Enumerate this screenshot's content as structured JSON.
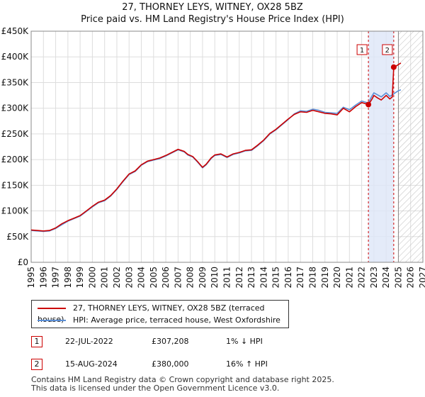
{
  "chart_data": {
    "type": "line",
    "title": "27, THORNEY LEYS, WITNEY, OX28 5BZ",
    "subtitle": "Price paid vs. HM Land Registry's House Price Index (HPI)",
    "xlabel": "",
    "ylabel": "",
    "xlim": [
      1995,
      2027
    ],
    "ylim": [
      0,
      450000
    ],
    "x_ticks": [
      "1995",
      "1996",
      "1997",
      "1998",
      "1999",
      "2000",
      "2001",
      "2002",
      "2003",
      "2004",
      "2005",
      "2006",
      "2007",
      "2008",
      "2009",
      "2010",
      "2011",
      "2012",
      "2013",
      "2014",
      "2015",
      "2016",
      "2017",
      "2018",
      "2019",
      "2020",
      "2021",
      "2022",
      "2023",
      "2024",
      "2025",
      "2026",
      "2027"
    ],
    "y_ticks": [
      {
        "value": 0,
        "label": "£0"
      },
      {
        "value": 50000,
        "label": "£50K"
      },
      {
        "value": 100000,
        "label": "£100K"
      },
      {
        "value": 150000,
        "label": "£150K"
      },
      {
        "value": 200000,
        "label": "£200K"
      },
      {
        "value": 250000,
        "label": "£250K"
      },
      {
        "value": 300000,
        "label": "£300K"
      },
      {
        "value": 350000,
        "label": "£350K"
      },
      {
        "value": 400000,
        "label": "£400K"
      },
      {
        "value": 450000,
        "label": "£450K"
      }
    ],
    "grid": true,
    "shaded_period": {
      "start": 2022.55,
      "end": 2024.62
    },
    "future_hatch_start": 2025.0,
    "series": [
      {
        "name": "27, THORNEY LEYS, WITNEY, OX28 5BZ (terraced house)",
        "color": "#cc0000",
        "x": [
          1995.0,
          1995.5,
          1996.0,
          1996.5,
          1997.0,
          1997.5,
          1998.0,
          1998.5,
          1999.0,
          1999.5,
          2000.0,
          2000.5,
          2001.0,
          2001.5,
          2002.0,
          2002.5,
          2003.0,
          2003.5,
          2004.0,
          2004.5,
          2005.0,
          2005.5,
          2006.0,
          2006.5,
          2007.0,
          2007.5,
          2007.8,
          2008.2,
          2008.6,
          2009.0,
          2009.3,
          2009.7,
          2010.0,
          2010.5,
          2011.0,
          2011.5,
          2012.0,
          2012.5,
          2013.0,
          2013.5,
          2014.0,
          2014.5,
          2015.0,
          2015.5,
          2016.0,
          2016.5,
          2017.0,
          2017.5,
          2018.0,
          2018.5,
          2019.0,
          2019.5,
          2020.0,
          2020.5,
          2021.0,
          2021.5,
          2022.0,
          2022.55,
          2022.8,
          2023.0,
          2023.3,
          2023.6,
          2024.0,
          2024.3,
          2024.5,
          2024.62,
          2024.8,
          2025.0,
          2025.2
        ],
        "values": [
          63000,
          62000,
          61000,
          62000,
          67000,
          75000,
          81000,
          86000,
          91000,
          100000,
          109000,
          117000,
          121000,
          130000,
          143000,
          158000,
          172000,
          178000,
          190000,
          197000,
          200000,
          203000,
          208000,
          214000,
          220000,
          216000,
          210000,
          206000,
          196000,
          185000,
          191000,
          203000,
          209000,
          211000,
          205000,
          211000,
          214000,
          218000,
          219000,
          228000,
          238000,
          251000,
          259000,
          269000,
          279000,
          288000,
          293000,
          292000,
          296000,
          293000,
          290000,
          289000,
          287000,
          300000,
          293000,
          303000,
          311000,
          307208,
          316000,
          325000,
          320000,
          316000,
          325000,
          318000,
          322000,
          380000,
          382000,
          385000,
          388000
        ]
      },
      {
        "name": "HPI: Average price, terraced house, West Oxfordshire",
        "color": "#5b8fd6",
        "x": [
          1995.0,
          1995.5,
          1996.0,
          1996.5,
          1997.0,
          1997.5,
          1998.0,
          1998.5,
          1999.0,
          1999.5,
          2000.0,
          2000.5,
          2001.0,
          2001.5,
          2002.0,
          2002.5,
          2003.0,
          2003.5,
          2004.0,
          2004.5,
          2005.0,
          2005.5,
          2006.0,
          2006.5,
          2007.0,
          2007.5,
          2007.8,
          2008.2,
          2008.6,
          2009.0,
          2009.3,
          2009.7,
          2010.0,
          2010.5,
          2011.0,
          2011.5,
          2012.0,
          2012.5,
          2013.0,
          2013.5,
          2014.0,
          2014.5,
          2015.0,
          2015.5,
          2016.0,
          2016.5,
          2017.0,
          2017.5,
          2018.0,
          2018.5,
          2019.0,
          2019.5,
          2020.0,
          2020.5,
          2021.0,
          2021.5,
          2022.0,
          2022.55,
          2022.8,
          2023.0,
          2023.3,
          2023.6,
          2024.0,
          2024.3,
          2024.5,
          2024.62,
          2024.8,
          2025.0,
          2025.2
        ],
        "values": [
          62000,
          61000,
          60000,
          61000,
          66000,
          73000,
          80000,
          85000,
          90000,
          99000,
          108000,
          116000,
          120000,
          129000,
          142000,
          157000,
          171000,
          177000,
          189000,
          196000,
          199000,
          202000,
          207000,
          213000,
          219000,
          215000,
          209000,
          205000,
          195000,
          184000,
          190000,
          202000,
          208000,
          210000,
          204000,
          210000,
          213000,
          217000,
          218000,
          227000,
          237000,
          250000,
          258000,
          268000,
          278000,
          289000,
          295000,
          294000,
          298000,
          296000,
          292000,
          291000,
          290000,
          302000,
          297000,
          306000,
          314000,
          310000,
          322000,
          330000,
          326000,
          322000,
          330000,
          323000,
          326000,
          328000,
          331000,
          334000,
          336000
        ]
      }
    ],
    "annotations": [
      {
        "label": "1",
        "x": 2022.55,
        "value": 307208
      },
      {
        "label": "2",
        "x": 2024.62,
        "value": 380000
      }
    ]
  },
  "legend": {
    "series1_label": "27, THORNEY LEYS, WITNEY, OX28 5BZ (terraced house)",
    "series2_label": "HPI: Average price, terraced house, West Oxfordshire"
  },
  "transactions": [
    {
      "num": "1",
      "date": "22-JUL-2022",
      "price": "£307,208",
      "hpi": "1% ↓ HPI"
    },
    {
      "num": "2",
      "date": "15-AUG-2024",
      "price": "£380,000",
      "hpi": "16% ↑ HPI"
    }
  ],
  "footer": {
    "line1": "Contains HM Land Registry data © Crown copyright and database right 2025.",
    "line2": "This data is licensed under the Open Government Licence v3.0."
  },
  "colors": {
    "price_line": "#cc0000",
    "hpi_line": "#5b8fd6",
    "shade": "#dde6f7",
    "grid": "#dddddd"
  }
}
